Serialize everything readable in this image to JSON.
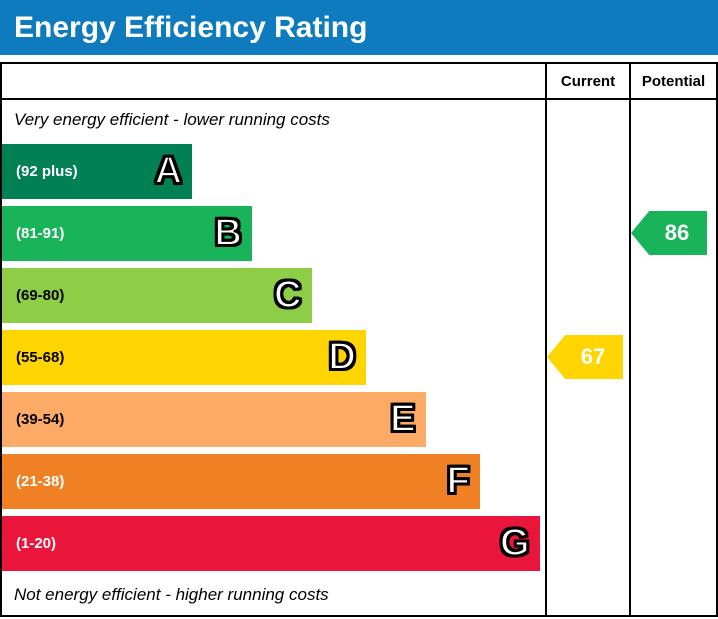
{
  "title": "Energy Efficiency Rating",
  "header": {
    "current": "Current",
    "potential": "Potential"
  },
  "notes": {
    "top": "Very energy efficient - lower running costs",
    "bottom": "Not energy efficient - higher running costs"
  },
  "bands": [
    {
      "letter": "A",
      "range": "(92 plus)",
      "color": "#008054",
      "bar_width_pct": 35,
      "label_color": "#ffffff"
    },
    {
      "letter": "B",
      "range": "(81-91)",
      "color": "#19b459",
      "bar_width_pct": 46,
      "label_color": "#ffffff"
    },
    {
      "letter": "C",
      "range": "(69-80)",
      "color": "#8dce46",
      "bar_width_pct": 57,
      "label_color": "#000000"
    },
    {
      "letter": "D",
      "range": "(55-68)",
      "color": "#ffd500",
      "bar_width_pct": 67,
      "label_color": "#000000"
    },
    {
      "letter": "E",
      "range": "(39-54)",
      "color": "#fcaa65",
      "bar_width_pct": 78,
      "label_color": "#000000"
    },
    {
      "letter": "F",
      "range": "(21-38)",
      "color": "#ef8023",
      "bar_width_pct": 88,
      "label_color": "#ffffff"
    },
    {
      "letter": "G",
      "range": "(1-20)",
      "color": "#e9153b",
      "bar_width_pct": 99,
      "label_color": "#ffffff"
    }
  ],
  "markers": {
    "current": {
      "value": "67",
      "band_index": 3,
      "color": "#ffd500",
      "text_color": "#ffffff"
    },
    "potential": {
      "value": "86",
      "band_index": 1,
      "color": "#19b459",
      "text_color": "#ffffff"
    }
  },
  "colors": {
    "title_bg": "#0f7bbf",
    "title_fg": "#ffffff",
    "border": "#000000"
  },
  "chart_data": {
    "type": "bar",
    "title": "Energy Efficiency Rating",
    "categories": [
      "A",
      "B",
      "C",
      "D",
      "E",
      "F",
      "G"
    ],
    "band_score_ranges": [
      "92 plus",
      "81-91",
      "69-80",
      "55-68",
      "39-54",
      "21-38",
      "1-20"
    ],
    "band_colors": [
      "#008054",
      "#19b459",
      "#8dce46",
      "#ffd500",
      "#fcaa65",
      "#ef8023",
      "#e9153b"
    ],
    "values": [
      35,
      46,
      57,
      67,
      78,
      88,
      99
    ],
    "value_unit": "relative bar width %",
    "score_scale": [
      1,
      100
    ],
    "annotations": [
      "Very energy efficient - lower running costs",
      "Not energy efficient - higher running costs"
    ],
    "markers": [
      {
        "label": "Current",
        "value": 67,
        "band": "D",
        "color": "#ffd500"
      },
      {
        "label": "Potential",
        "value": 86,
        "band": "B",
        "color": "#19b459"
      }
    ],
    "legend_position": "right-columns",
    "grid": false
  }
}
